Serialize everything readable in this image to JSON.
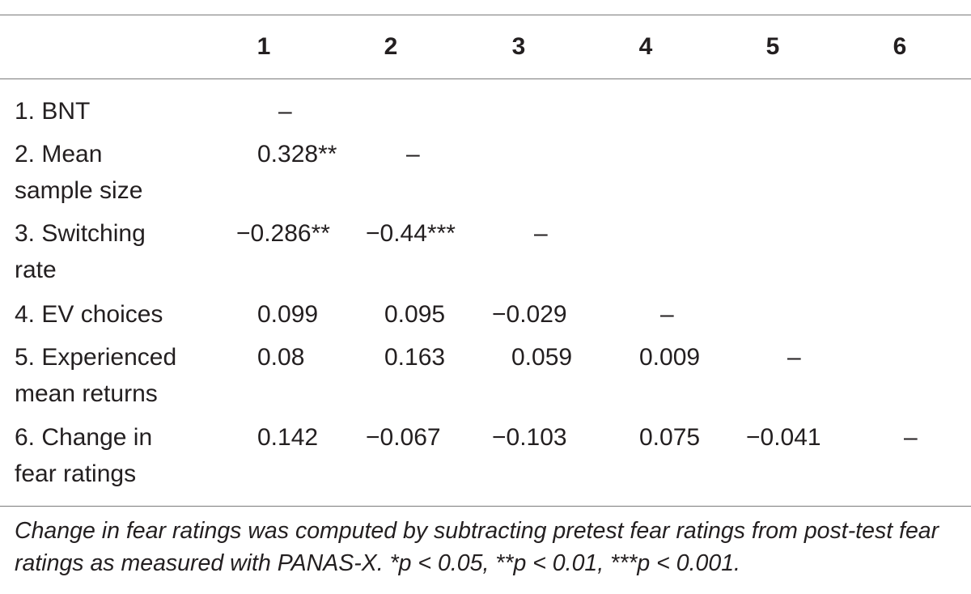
{
  "table": {
    "column_headers": [
      "1",
      "2",
      "3",
      "4",
      "5",
      "6"
    ],
    "rows": [
      {
        "label": "1. BNT",
        "cells": [
          "–",
          "",
          "",
          "",
          "",
          ""
        ]
      },
      {
        "label": "2. Mean\nsample size",
        "cells": [
          "0.328**",
          "–",
          "",
          "",
          "",
          ""
        ]
      },
      {
        "label": "3. Switching\nrate",
        "cells": [
          "−0.286**",
          "−0.44***",
          "–",
          "",
          "",
          ""
        ]
      },
      {
        "label": "4. EV choices",
        "cells": [
          "0.099",
          "0.095",
          "−0.029",
          "–",
          "",
          ""
        ]
      },
      {
        "label": "5. Experienced\nmean returns",
        "cells": [
          "0.08",
          "0.163",
          "0.059",
          "0.009",
          "–",
          ""
        ]
      },
      {
        "label": "6. Change in\nfear ratings",
        "cells": [
          "0.142",
          "−0.067",
          "−0.103",
          "0.075",
          "−0.041",
          "–"
        ]
      }
    ],
    "footnote": "Change in fear ratings was computed by subtracting pretest fear ratings from post-test fear ratings as measured with PANAS-X. *p < 0.05, **p < 0.01, ***p < 0.001."
  }
}
